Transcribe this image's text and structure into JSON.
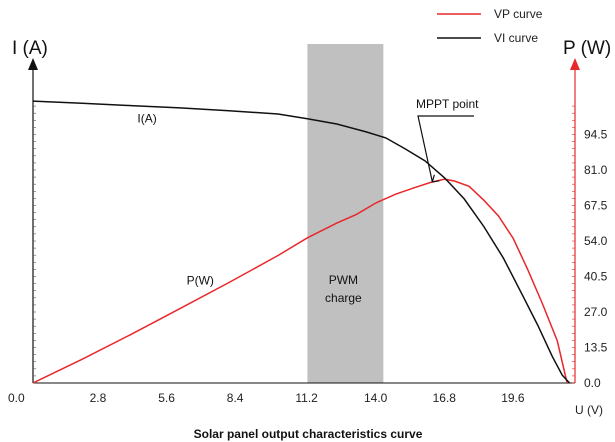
{
  "chart_data": {
    "type": "line",
    "title": "Solar panel output characteristics curve",
    "y_left_label": "I (A)",
    "y_right_label": "P (W)",
    "x_unit_label": "U (V)",
    "x_ticks": [
      "0.0",
      "2.8",
      "5.6",
      "8.4",
      "11.2",
      "14.0",
      "16.8",
      "19.6"
    ],
    "y_right_ticks": [
      "0.0",
      "13.5",
      "27.0",
      "40.5",
      "54.0",
      "67.5",
      "81.0",
      "94.5"
    ],
    "xlim": [
      0,
      22.4
    ],
    "y_right_lim": [
      0,
      108
    ],
    "y_left_lim": [
      0,
      108
    ],
    "legend": {
      "position": "top-right",
      "entries": [
        {
          "label": "VP curve",
          "color": "#e8282b"
        },
        {
          "label": "VI curve",
          "color": "#111111"
        }
      ]
    },
    "series": [
      {
        "name": "VP curve",
        "color": "#e8282b",
        "x": [
          0.0,
          2.0,
          4.0,
          6.0,
          8.0,
          10.0,
          11.2,
          12.4,
          13.2,
          14.0,
          14.8,
          15.6,
          16.2,
          16.8,
          17.2,
          17.8,
          18.4,
          19.0,
          19.6,
          20.2,
          20.8,
          21.4,
          21.8
        ],
        "y": [
          0.0,
          9.0,
          18.5,
          28.3,
          38.2,
          48.5,
          55.2,
          60.8,
          64.1,
          68.5,
          71.8,
          74.4,
          76.2,
          77.5,
          76.8,
          74.8,
          69.5,
          63.5,
          55.0,
          43.0,
          30.0,
          16.0,
          0.0
        ]
      },
      {
        "name": "VI curve",
        "color": "#111111",
        "x": [
          0.0,
          2.0,
          4.0,
          6.0,
          8.0,
          10.0,
          11.2,
          12.4,
          13.6,
          14.4,
          15.2,
          16.0,
          16.8,
          17.6,
          18.4,
          19.2,
          20.0,
          20.6,
          21.2,
          21.6,
          21.9
        ],
        "y": [
          107.2,
          106.4,
          105.5,
          104.6,
          103.5,
          102.3,
          100.5,
          98.5,
          95.5,
          93.2,
          89.0,
          84.5,
          78.0,
          70.0,
          59.5,
          47.5,
          33.0,
          22.0,
          10.0,
          3.0,
          0.0
        ]
      }
    ],
    "shaded_region": {
      "x": [
        11.2,
        14.3
      ],
      "label_line1": "PWM",
      "label_line2": "charge",
      "color": "#c0c0c0"
    },
    "annotations": [
      {
        "text": "I(A)",
        "x": 7.2,
        "y": 100.5
      },
      {
        "text": "P(W)",
        "x": 12.8,
        "y": 45.0
      },
      {
        "text": "MPPT point",
        "x": 17.4,
        "y": 87.0,
        "target_x": 16.3,
        "target_y": 76.5
      }
    ]
  }
}
